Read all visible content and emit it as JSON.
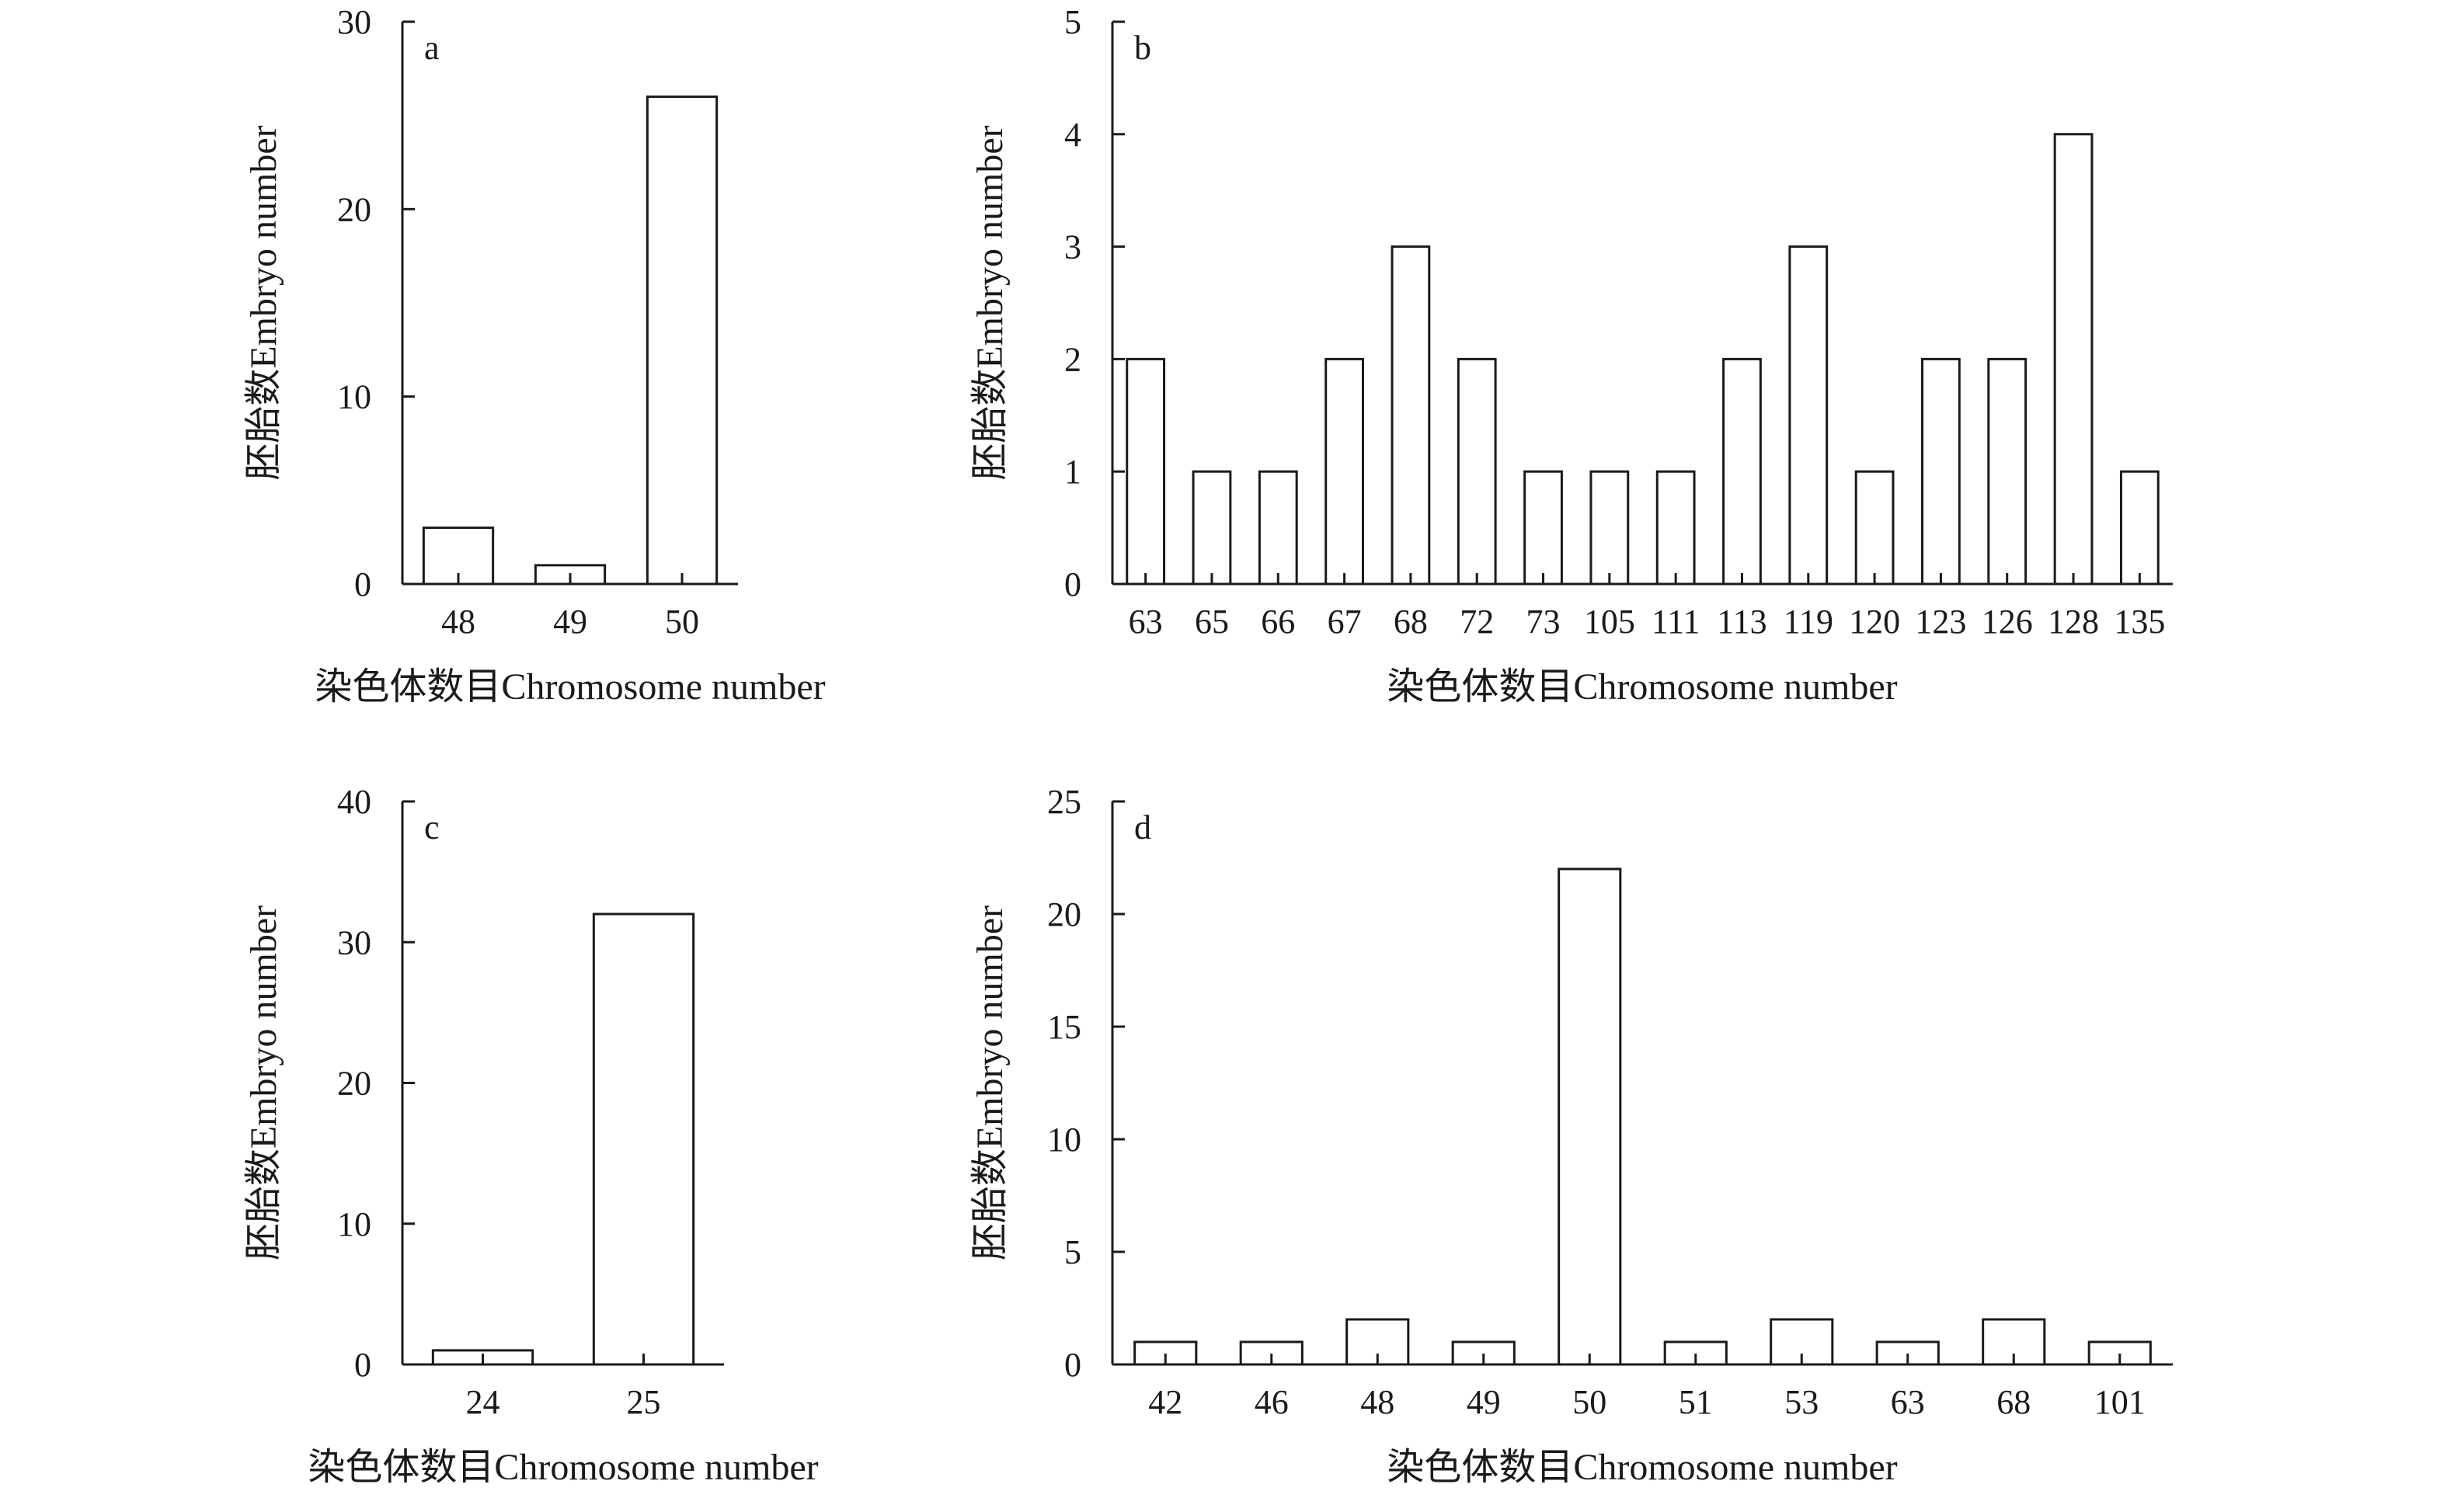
{
  "figure": {
    "xlabel": "染色体数目Chromosome number",
    "ylabel": "胚胎数Embryo number"
  },
  "chart_data": [
    {
      "type": "bar",
      "panel": "a",
      "categories": [
        "48",
        "49",
        "50"
      ],
      "values": [
        3,
        1,
        26
      ],
      "ylim": [
        0,
        30
      ],
      "yticks": [
        0,
        10,
        20,
        30
      ],
      "xlabel": "染色体数目Chromosome number",
      "ylabel": "胚胎数Embryo number"
    },
    {
      "type": "bar",
      "panel": "b",
      "categories": [
        "63",
        "65",
        "66",
        "67",
        "68",
        "72",
        "73",
        "105",
        "111",
        "113",
        "119",
        "120",
        "123",
        "126",
        "128",
        "135"
      ],
      "values": [
        2,
        1,
        1,
        2,
        3,
        2,
        1,
        1,
        1,
        2,
        3,
        1,
        2,
        2,
        4,
        1
      ],
      "ylim": [
        0,
        5
      ],
      "yticks": [
        0,
        1,
        2,
        3,
        4,
        5
      ],
      "xlabel": "染色体数目Chromosome number",
      "ylabel": "胚胎数Embryo number"
    },
    {
      "type": "bar",
      "panel": "c",
      "categories": [
        "24",
        "25"
      ],
      "values": [
        1,
        32
      ],
      "ylim": [
        0,
        40
      ],
      "yticks": [
        0,
        10,
        20,
        30,
        40
      ],
      "xlabel": "染色体数目Chromosome number",
      "ylabel": "胚胎数Embryo number"
    },
    {
      "type": "bar",
      "panel": "d",
      "categories": [
        "42",
        "46",
        "48",
        "49",
        "50",
        "51",
        "53",
        "63",
        "68",
        "101"
      ],
      "values": [
        1,
        1,
        2,
        1,
        22,
        1,
        2,
        1,
        2,
        1
      ],
      "ylim": [
        0,
        25
      ],
      "yticks": [
        0,
        5,
        10,
        15,
        20,
        25
      ],
      "xlabel": "染色体数目Chromosome number",
      "ylabel": "胚胎数Embryo number"
    }
  ]
}
